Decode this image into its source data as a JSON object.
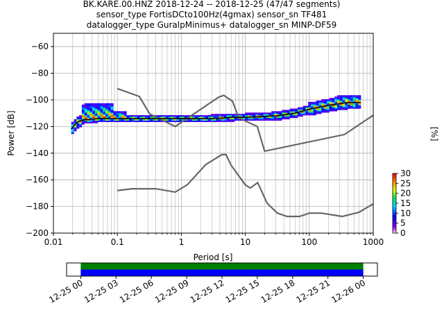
{
  "chart_data": [
    {
      "type": "heatmap",
      "title_lines": [
        "BK.KARE.00.HNZ   2018-12-24 -- 2018-12-25  (47/47 segments)",
        "sensor_type FortisDCto100Hz(4gmax) sensor_sn TF481",
        "datalogger_type GuralpMinimus+ datalogger_sn MINP-DF59"
      ],
      "xlabel": "Period [s]",
      "ylabel": "Power [dB]",
      "xscale": "log",
      "xlim": [
        0.01,
        1000
      ],
      "ylim": [
        -200,
        -50
      ],
      "xtick_labels": [
        "0.01",
        "0.1",
        "1",
        "10",
        "100",
        "1000"
      ],
      "ytick_values": [
        -60,
        -80,
        -100,
        -120,
        -140,
        -160,
        -180,
        -200
      ],
      "ytick_labels": [
        "−60",
        "−80",
        "−100",
        "−120",
        "−140",
        "−160",
        "−180",
        "−200"
      ],
      "grid": true,
      "noise_models": {
        "color": "#666666",
        "NHNM": [
          [
            0.1,
            -91.5
          ],
          [
            0.22,
            -97.4
          ],
          [
            0.32,
            -110.5
          ],
          [
            0.8,
            -120
          ],
          [
            3.8,
            -98
          ],
          [
            4.6,
            -96.5
          ],
          [
            6.3,
            -101
          ],
          [
            7.9,
            -113.5
          ],
          [
            15.4,
            -120
          ],
          [
            20,
            -138.5
          ],
          [
            354.8,
            -126
          ],
          [
            1000,
            -111.5
          ]
        ],
        "NLNM": [
          [
            0.1,
            -168
          ],
          [
            0.17,
            -166.7
          ],
          [
            0.4,
            -166.7
          ],
          [
            0.8,
            -169.2
          ],
          [
            1.24,
            -163.7
          ],
          [
            2.4,
            -148.6
          ],
          [
            4.3,
            -141.1
          ],
          [
            5,
            -141.1
          ],
          [
            6,
            -149
          ],
          [
            10,
            -163.8
          ],
          [
            12,
            -166.2
          ],
          [
            15.6,
            -162.1
          ],
          [
            21.9,
            -177.5
          ],
          [
            31.6,
            -185
          ],
          [
            45,
            -187.5
          ],
          [
            70,
            -187.5
          ],
          [
            101,
            -185
          ],
          [
            154,
            -185
          ],
          [
            328,
            -187.5
          ],
          [
            600,
            -184.4
          ],
          [
            1000,
            -178
          ]
        ]
      },
      "median_psd": [
        [
          0.019,
          -122
        ],
        [
          0.022,
          -118
        ],
        [
          0.025,
          -116
        ],
        [
          0.03,
          -115
        ],
        [
          0.05,
          -114
        ],
        [
          0.1,
          -114
        ],
        [
          0.3,
          -114
        ],
        [
          1,
          -114
        ],
        [
          3,
          -114
        ],
        [
          7,
          -113
        ],
        [
          10,
          -113
        ],
        [
          30,
          -112
        ],
        [
          60,
          -110
        ],
        [
          100,
          -107
        ],
        [
          200,
          -104
        ],
        [
          400,
          -102
        ],
        [
          640,
          -102
        ]
      ],
      "colorbar": {
        "label": "[%]",
        "ticks": [
          "0",
          "5",
          "10",
          "15",
          "20",
          "25",
          "30"
        ],
        "range": [
          0,
          30
        ]
      }
    },
    {
      "type": "timeline",
      "tick_labels": [
        "12-25 00",
        "12-25 03",
        "12-25 06",
        "12-25 09",
        "12-25 12",
        "12-25 15",
        "12-25 18",
        "12-25 21",
        "12-26 00"
      ],
      "tick_hours": [
        0,
        3,
        6,
        9,
        12,
        15,
        18,
        21,
        24
      ],
      "xlim_hours": [
        -1.2,
        25.2
      ],
      "coverage_hours": [
        0,
        24
      ],
      "colors": {
        "top": "#008000",
        "bottom": "#0000ff"
      }
    }
  ]
}
